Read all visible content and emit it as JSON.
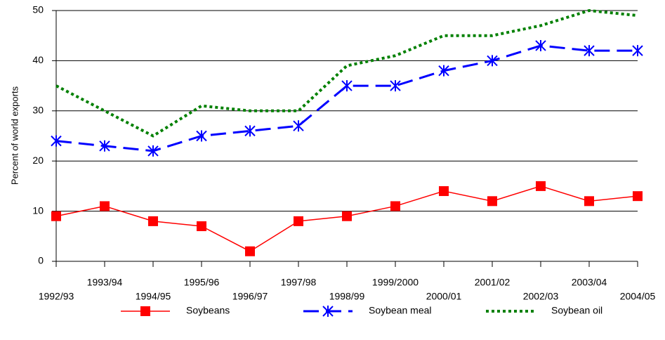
{
  "chart_data": {
    "type": "line",
    "y_label": "Percent of world exports",
    "categories": [
      "1992/93",
      "1993/94",
      "1994/95",
      "1995/96",
      "1996/97",
      "1997/98",
      "1998/99",
      "1999/2000",
      "2000/01",
      "2001/02",
      "2002/03",
      "2003/04",
      "2004/05"
    ],
    "series": [
      {
        "name": "Soybeans",
        "color": "#ff0000",
        "line_style": "solid",
        "marker": "square",
        "values": [
          9,
          11,
          8,
          7,
          2,
          8,
          9,
          11,
          14,
          12,
          15,
          12,
          13
        ]
      },
      {
        "name": "Soybean meal",
        "color": "#0000ff",
        "line_style": "dashed",
        "marker": "x",
        "values": [
          24,
          23,
          22,
          25,
          26,
          27,
          35,
          35,
          38,
          40,
          43,
          42,
          42
        ]
      },
      {
        "name": "Soybean oil",
        "color": "#008000",
        "line_style": "dotted",
        "marker": "none",
        "values": [
          35,
          30,
          25,
          31,
          30,
          30,
          39,
          41,
          45,
          45,
          47,
          50,
          49
        ]
      }
    ],
    "ylim": [
      0,
      50
    ],
    "yticks": [
      0,
      10,
      20,
      30,
      40,
      50
    ],
    "grid": true,
    "legend": "bottom"
  }
}
